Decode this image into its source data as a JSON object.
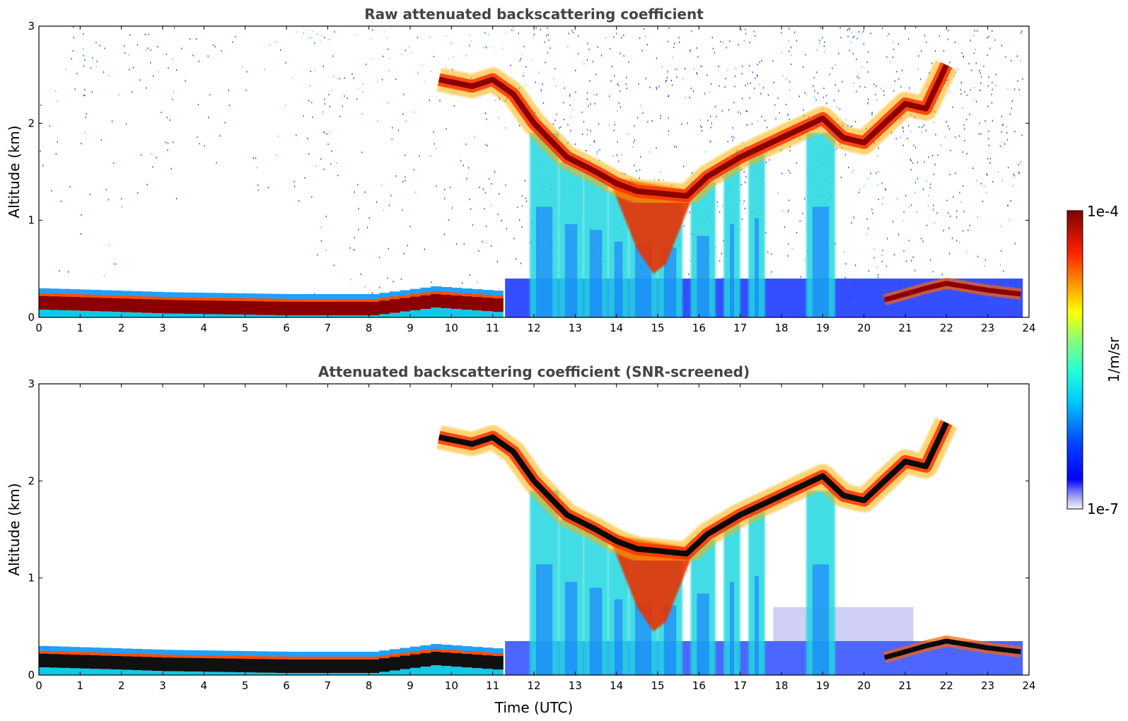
{
  "chart_data": [
    {
      "type": "heatmap",
      "title": "Raw attenuated backscattering coefficient",
      "xlabel": "",
      "ylabel": "Altitude (km)",
      "xlim": [
        0,
        24
      ],
      "ylim": [
        0,
        3
      ],
      "xticks": [
        "0",
        "1",
        "2",
        "3",
        "4",
        "5",
        "6",
        "7",
        "8",
        "9",
        "10",
        "11",
        "12",
        "13",
        "14",
        "15",
        "16",
        "17",
        "18",
        "19",
        "20",
        "21",
        "22",
        "23",
        "24"
      ],
      "yticks": [
        "0",
        "1",
        "2",
        "3"
      ],
      "screened": false,
      "data_end_hour": 23.85,
      "boundary_layer_top_km": [
        {
          "t": 0,
          "z": 0.18
        },
        {
          "t": 3,
          "z": 0.14
        },
        {
          "t": 6,
          "z": 0.12
        },
        {
          "t": 8,
          "z": 0.12
        },
        {
          "t": 9.5,
          "z": 0.2
        },
        {
          "t": 11.2,
          "z": 0.15
        }
      ],
      "cloud_layer_base_km": [
        {
          "t": 9.7,
          "z": 2.45
        },
        {
          "t": 10.5,
          "z": 2.38
        },
        {
          "t": 11.0,
          "z": 2.45
        },
        {
          "t": 11.5,
          "z": 2.3
        },
        {
          "t": 12.0,
          "z": 2.0
        },
        {
          "t": 12.8,
          "z": 1.65
        },
        {
          "t": 13.5,
          "z": 1.5
        },
        {
          "t": 14.0,
          "z": 1.38
        },
        {
          "t": 14.5,
          "z": 1.3
        },
        {
          "t": 15.0,
          "z": 1.28
        },
        {
          "t": 15.7,
          "z": 1.25
        },
        {
          "t": 16.2,
          "z": 1.45
        },
        {
          "t": 17.0,
          "z": 1.65
        },
        {
          "t": 18.0,
          "z": 1.85
        },
        {
          "t": 18.5,
          "z": 1.95
        },
        {
          "t": 19.0,
          "z": 2.05
        },
        {
          "t": 19.5,
          "z": 1.85
        },
        {
          "t": 20.0,
          "z": 1.8
        },
        {
          "t": 20.5,
          "z": 2.0
        },
        {
          "t": 21.0,
          "z": 2.2
        },
        {
          "t": 21.5,
          "z": 2.15
        },
        {
          "t": 22.0,
          "z": 2.6
        }
      ],
      "evening_layer_km": [
        {
          "t": 20.5,
          "z": 0.18
        },
        {
          "t": 21.5,
          "z": 0.3
        },
        {
          "t": 22.0,
          "z": 0.35
        },
        {
          "t": 23.0,
          "z": 0.28
        },
        {
          "t": 23.8,
          "z": 0.24
        }
      ]
    },
    {
      "type": "heatmap",
      "title": "Attenuated backscattering coefficient (SNR-screened)",
      "xlabel": "Time (UTC)",
      "ylabel": "Altitude (km)",
      "xlim": [
        0,
        24
      ],
      "ylim": [
        0,
        3
      ],
      "xticks": [
        "0",
        "1",
        "2",
        "3",
        "4",
        "5",
        "6",
        "7",
        "8",
        "9",
        "10",
        "11",
        "12",
        "13",
        "14",
        "15",
        "16",
        "17",
        "18",
        "19",
        "20",
        "21",
        "22",
        "23",
        "24"
      ],
      "yticks": [
        "0",
        "1",
        "2",
        "3"
      ],
      "screened": true,
      "data_end_hour": 23.85
    }
  ],
  "colorbar": {
    "label": "1/m/sr",
    "max_label": "1e-4",
    "min_label": "1e-7",
    "scale": "log",
    "range": [
      1e-07,
      0.0001
    ]
  }
}
